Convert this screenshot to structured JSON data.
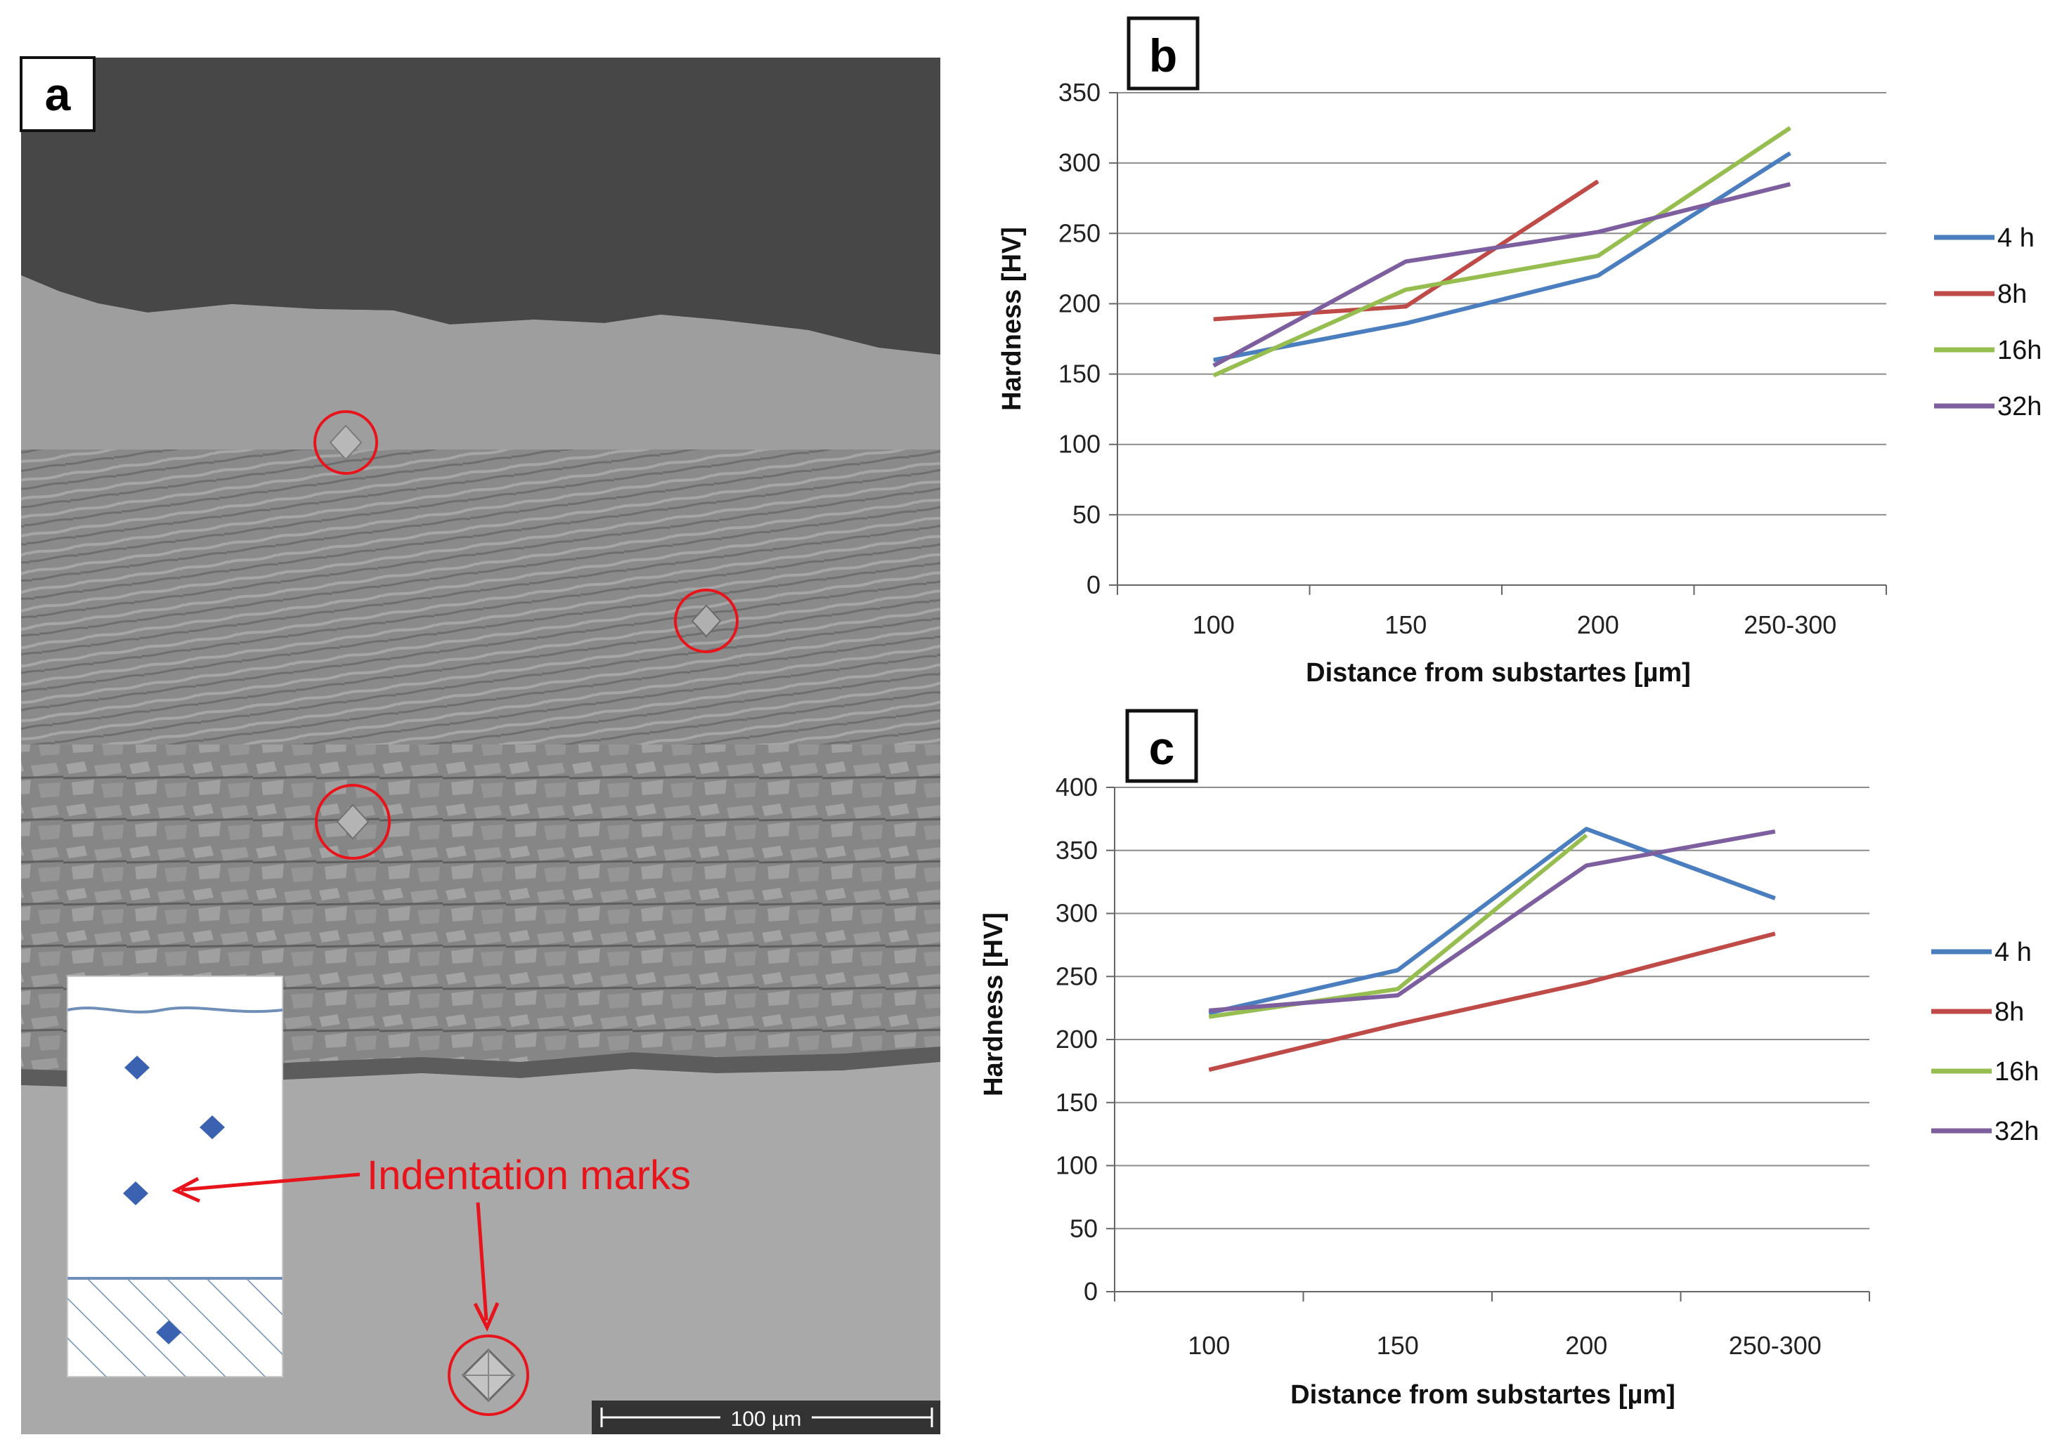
{
  "panel_a": {
    "label": "a",
    "scale_bar_label": "100 µm",
    "annotation": "Indentation marks",
    "annotation_color": "#e8141b",
    "marker_color": "#3a62b0"
  },
  "colors": {
    "4h": "#4a7ebf",
    "8h": "#bf4b48",
    "16h": "#95bd4f",
    "32h": "#7d5fa0"
  },
  "chart_data": [
    {
      "panel": "b",
      "type": "line",
      "title": "",
      "xlabel": "Distance from substartes [µm]",
      "ylabel": "Hardness  [HV]",
      "categories": [
        "100",
        "150",
        "200",
        "250-300"
      ],
      "ylim": [
        0,
        350
      ],
      "yticks": [
        0,
        50,
        100,
        150,
        200,
        250,
        300,
        350
      ],
      "grid": true,
      "legend_position": "right",
      "series": [
        {
          "name": "4 h",
          "color": "#4a7ebf",
          "values": [
            160,
            186,
            220,
            307
          ]
        },
        {
          "name": "8h",
          "color": "#bf4b48",
          "values": [
            189,
            198,
            287,
            null
          ]
        },
        {
          "name": "16h",
          "color": "#95bd4f",
          "values": [
            149,
            210,
            234,
            325
          ]
        },
        {
          "name": "32h",
          "color": "#7d5fa0",
          "values": [
            156,
            230,
            251,
            285
          ]
        }
      ]
    },
    {
      "panel": "c",
      "type": "line",
      "title": "",
      "xlabel": "Distance from substartes [µm]",
      "ylabel": "Hardness  [HV]",
      "categories": [
        "100",
        "150",
        "200",
        "250-300"
      ],
      "ylim": [
        0,
        400
      ],
      "yticks": [
        0,
        50,
        100,
        150,
        200,
        250,
        300,
        350,
        400
      ],
      "grid": true,
      "legend_position": "right",
      "series": [
        {
          "name": "4 h",
          "color": "#4a7ebf",
          "values": [
            221,
            255,
            367,
            312
          ]
        },
        {
          "name": "8h",
          "color": "#bf4b48",
          "values": [
            176,
            212,
            245,
            284
          ]
        },
        {
          "name": "16h",
          "color": "#95bd4f",
          "values": [
            218,
            240,
            362,
            null
          ]
        },
        {
          "name": "32h",
          "color": "#7d5fa0",
          "values": [
            223,
            235,
            338,
            365
          ]
        }
      ]
    }
  ]
}
